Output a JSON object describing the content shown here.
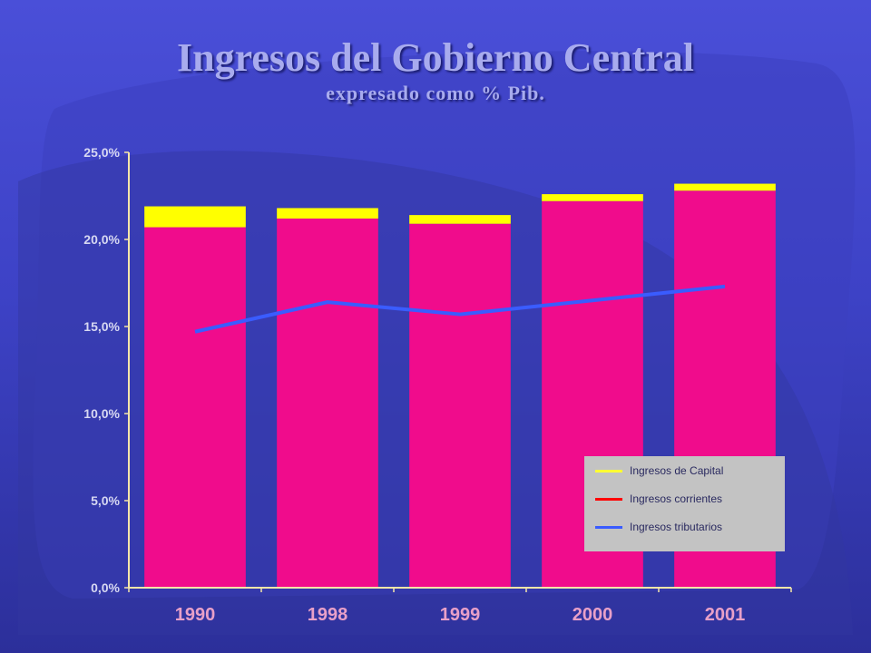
{
  "title": "Ingresos del Gobierno Central",
  "subtitle": "expresado como % Pib.",
  "colors": {
    "background": "#4a4fd8",
    "capital": "#ffff00",
    "corrientes": "#f00c8c",
    "tributarios": "#3a5cff",
    "legend_capital": "#ffff33",
    "legend_corrientes": "#ff0000",
    "legend_tributarios": "#3a5cff",
    "axis": "#f5e6a8"
  },
  "legend": [
    {
      "label": "Ingresos de Capital",
      "color": "#ffff33"
    },
    {
      "label": "Ingresos corrientes",
      "color": "#ff0000"
    },
    {
      "label": "Ingresos tributarios",
      "color": "#3a5cff"
    }
  ],
  "chart_data": {
    "type": "bar",
    "title": "Ingresos del Gobierno Central",
    "subtitle": "expresado como % Pib.",
    "categories": [
      "1990",
      "1998",
      "1999",
      "2000",
      "2001"
    ],
    "ylim": [
      0,
      25
    ],
    "yticks": [
      "0,0%",
      "5,0%",
      "10,0%",
      "15,0%",
      "20,0%",
      "25,0%"
    ],
    "stacked": true,
    "series": [
      {
        "name": "Ingresos corrientes",
        "kind": "bar",
        "color": "#f00c8c",
        "values": [
          20.7,
          21.2,
          20.9,
          22.2,
          22.8
        ]
      },
      {
        "name": "Ingresos de Capital",
        "kind": "bar",
        "color": "#ffff00",
        "values": [
          1.2,
          0.6,
          0.5,
          0.4,
          0.4
        ]
      },
      {
        "name": "Ingresos tributarios",
        "kind": "line",
        "color": "#3a5cff",
        "values": [
          14.7,
          16.4,
          15.7,
          16.5,
          17.3
        ]
      }
    ],
    "legend_position": "bottom-right",
    "grid": false
  }
}
